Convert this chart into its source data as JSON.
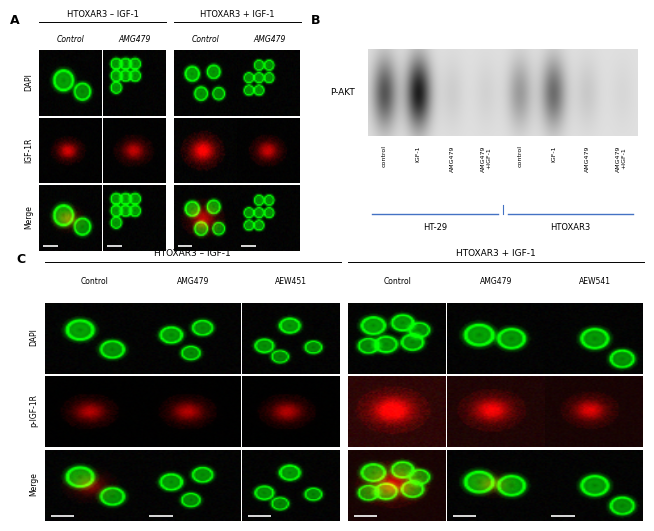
{
  "bg_color": "#ffffff",
  "panel_A": {
    "label": "A",
    "groups": [
      {
        "title": "HTOXAR3 – IGF-1",
        "cols": [
          "Control",
          "AMG479"
        ]
      },
      {
        "title": "HTOXAR3 + IGF-1",
        "cols": [
          "Control",
          "AMG479"
        ]
      }
    ],
    "row_labels": [
      "DAPI",
      "IGF-1R",
      "Merge"
    ]
  },
  "panel_B": {
    "label": "B",
    "label_pakt": "P-AKT",
    "x_labels": [
      "control",
      "IGF-1",
      "AMG479",
      "AMG479\n+IGF-1",
      "control",
      "IGF-1",
      "AMG479",
      "AMG479\n+IGF-1"
    ],
    "group_labels": [
      "HT-29",
      "HTOXAR3"
    ],
    "band_intensities": [
      0.6,
      0.85,
      0.08,
      0.06,
      0.3,
      0.5,
      0.1,
      0.04
    ],
    "blot_bg": "#d8d8d8",
    "line_color": "#4472c4"
  },
  "panel_C": {
    "label": "C",
    "groups": [
      {
        "title": "HTOXAR3 – IGF-1",
        "cols": [
          "Control",
          "AMG479",
          "AEW451"
        ]
      },
      {
        "title": "HTOXAR3 + IGF-1",
        "cols": [
          "Control",
          "AMG479",
          "AEW541"
        ]
      }
    ],
    "row_labels": [
      "DAPI",
      "p-IGF-1R",
      "Merge"
    ]
  },
  "colors": {
    "green": "#00dd00",
    "dark_green": "#004400",
    "red": "#cc1100",
    "dark_red": "#440000",
    "black": "#000000",
    "white": "#ffffff",
    "text": "#000000",
    "blue_line": "#4472c4",
    "gray_border": "#555555"
  },
  "font_sizes": {
    "panel_label": 9,
    "group_title": 6,
    "col_label": 5.5,
    "row_label": 5.5,
    "band_label": 6.5,
    "group_under": 6
  }
}
